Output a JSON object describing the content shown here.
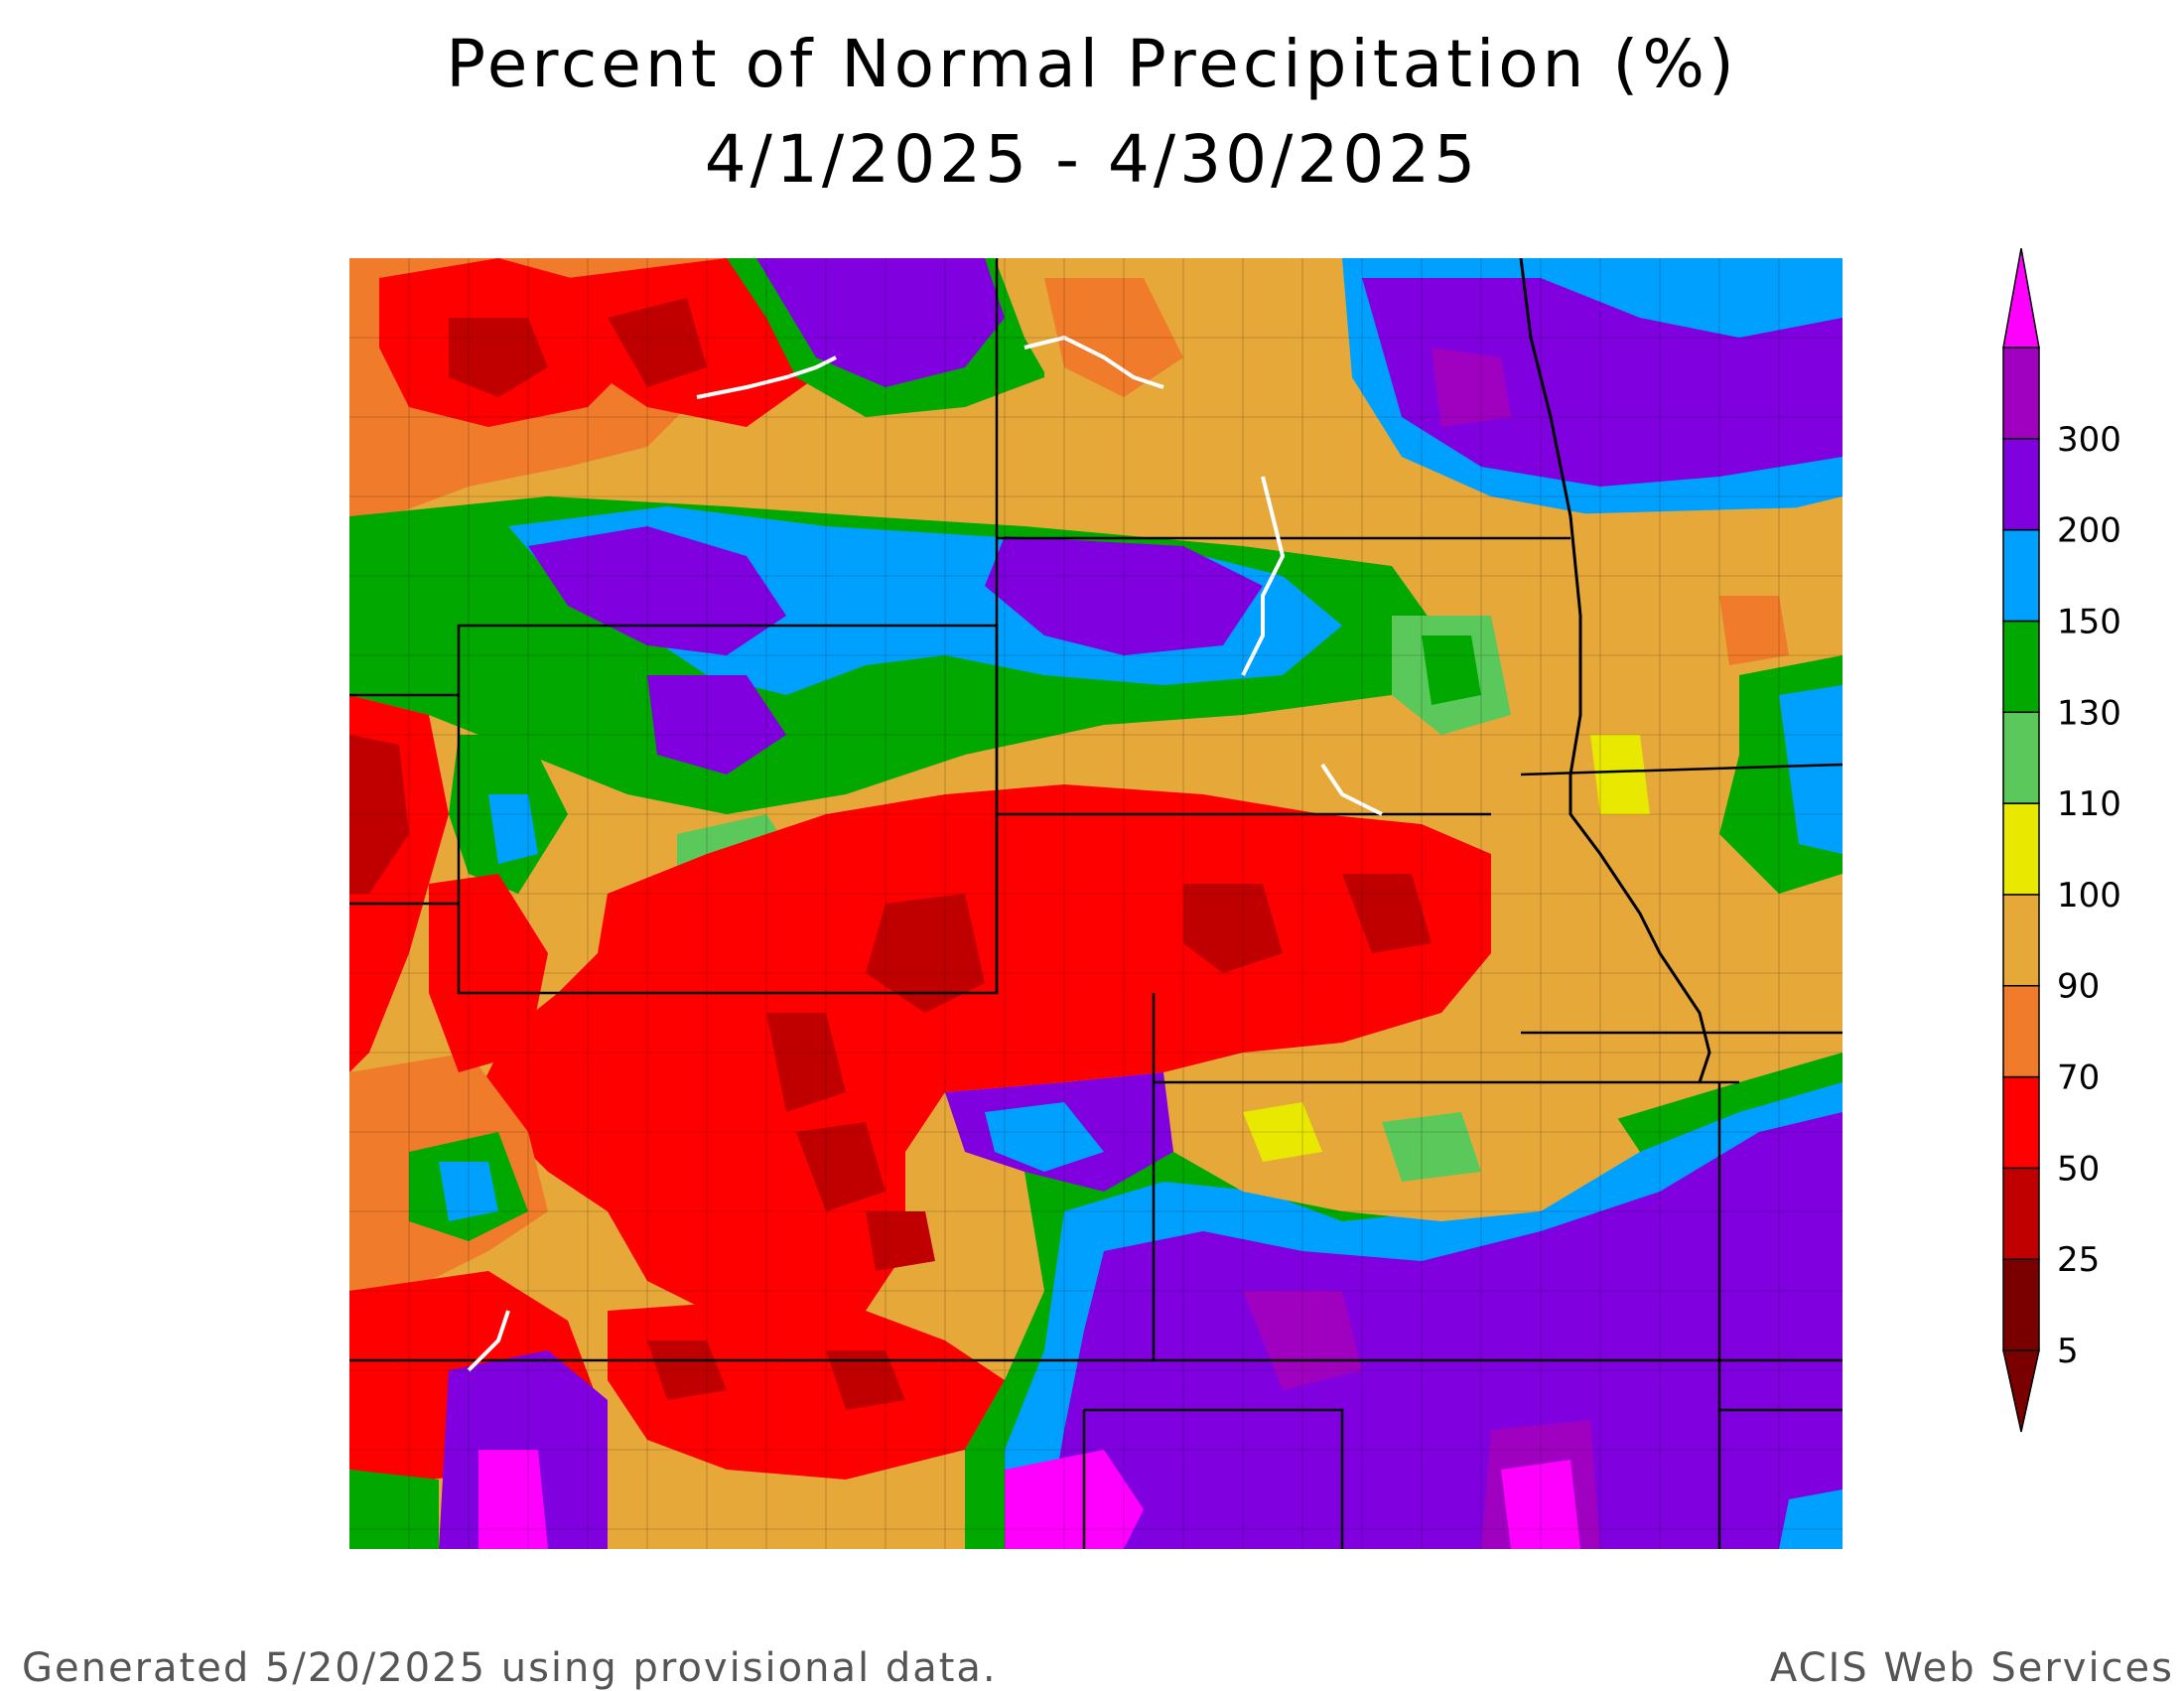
{
  "title": {
    "line1": "Percent of Normal Precipitation (%)",
    "line2": "4/1/2025 - 4/30/2025"
  },
  "legend": {
    "bins": [
      {
        "label": "5",
        "color": "#7a0000"
      },
      {
        "label": "25",
        "color": "#c00000"
      },
      {
        "label": "50",
        "color": "#ff0000"
      },
      {
        "label": "70",
        "color": "#f07b2a"
      },
      {
        "label": "90",
        "color": "#e7a83a"
      },
      {
        "label": "100",
        "color": "#e8e800"
      },
      {
        "label": "110",
        "color": "#5bc85b"
      },
      {
        "label": "130",
        "color": "#00a800"
      },
      {
        "label": "150",
        "color": "#00a0ff"
      },
      {
        "label": "200",
        "color": "#8000e0"
      },
      {
        "label": "300",
        "color": "#a000c0"
      }
    ],
    "top_color": "#ff00ff"
  },
  "footer": {
    "left": "Generated 5/20/2025 using provisional data.",
    "right": "ACIS Web Services"
  }
}
